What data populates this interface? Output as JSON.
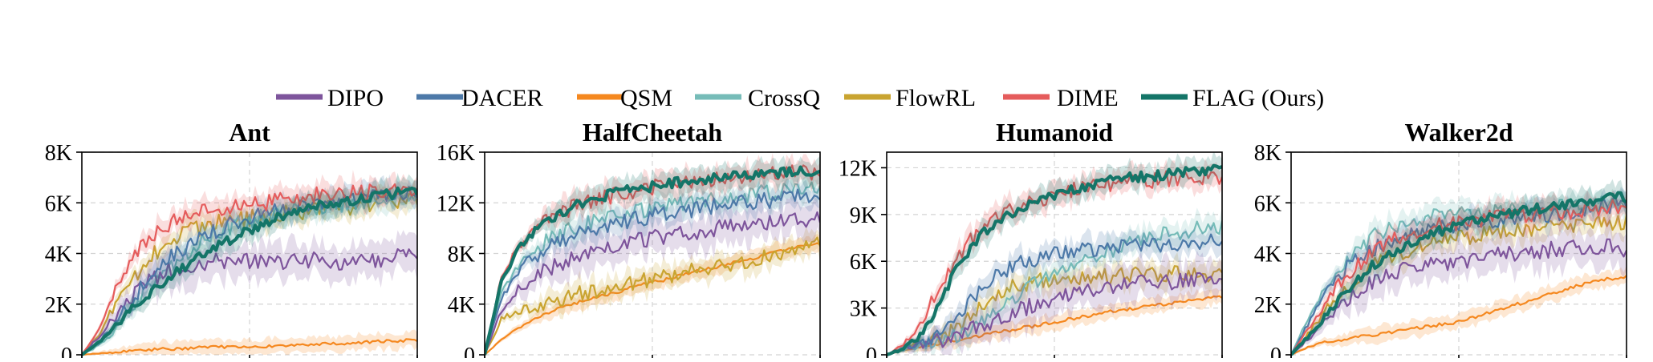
{
  "legend": [
    {
      "name": "DIPO",
      "color": "#7e559c"
    },
    {
      "name": "DACER",
      "color": "#4d79a8"
    },
    {
      "name": "QSM",
      "color": "#f5881f"
    },
    {
      "name": "CrossQ",
      "color": "#76bcb8"
    },
    {
      "name": "FlowRL",
      "color": "#c9a430"
    },
    {
      "name": "DIME",
      "color": "#e55c5c"
    },
    {
      "name": "FLAG (Ours)",
      "color": "#147568"
    }
  ],
  "chart_data": [
    {
      "type": "line",
      "title": "Ant",
      "ylim": [
        0,
        8000
      ],
      "yticks": [
        0,
        2000,
        4000,
        6000,
        8000
      ],
      "yticklabels": [
        "0",
        "2K",
        "4K",
        "6K",
        "8K"
      ],
      "grid": true,
      "x": [
        0,
        0.05,
        0.1,
        0.15,
        0.2,
        0.25,
        0.3,
        0.35,
        0.4,
        0.45,
        0.5,
        0.55,
        0.6,
        0.65,
        0.7,
        0.75,
        0.8,
        0.85,
        0.9,
        0.95,
        1.0
      ],
      "series": [
        {
          "name": "DIPO",
          "values": [
            0,
            700,
            1500,
            2300,
            2900,
            3300,
            3500,
            3600,
            3700,
            3650,
            3700,
            3750,
            3600,
            3700,
            3800,
            3700,
            3600,
            3800,
            3700,
            3900,
            3800
          ]
        },
        {
          "name": "DACER",
          "values": [
            0,
            500,
            1200,
            2200,
            3000,
            3700,
            4200,
            4600,
            4900,
            5200,
            5400,
            5600,
            5700,
            5800,
            5900,
            6000,
            6100,
            6200,
            6300,
            6400,
            6500
          ]
        },
        {
          "name": "QSM",
          "values": [
            0,
            50,
            100,
            150,
            200,
            220,
            250,
            280,
            300,
            320,
            330,
            350,
            380,
            400,
            420,
            440,
            470,
            500,
            520,
            560,
            600
          ]
        },
        {
          "name": "CrossQ",
          "values": [
            0,
            400,
            1000,
            1800,
            2600,
            3300,
            3900,
            4400,
            4800,
            5100,
            5300,
            5500,
            5600,
            5700,
            5800,
            5900,
            6000,
            6100,
            6200,
            6300,
            6300
          ]
        },
        {
          "name": "FlowRL",
          "values": [
            0,
            800,
            2000,
            3000,
            3800,
            4400,
            4800,
            5000,
            5200,
            5300,
            5400,
            5500,
            5600,
            5600,
            5700,
            5800,
            5800,
            5900,
            6000,
            6000,
            6100
          ]
        },
        {
          "name": "DIME",
          "values": [
            0,
            1000,
            2600,
            3800,
            4600,
            5100,
            5400,
            5600,
            5800,
            5900,
            6000,
            6000,
            6100,
            6200,
            6300,
            6300,
            6400,
            6400,
            6500,
            6500,
            6600
          ]
        },
        {
          "name": "FLAG (Ours)",
          "values": [
            0,
            500,
            1100,
            1800,
            2400,
            2900,
            3400,
            3900,
            4300,
            4600,
            4900,
            5200,
            5500,
            5700,
            5900,
            6000,
            6100,
            6200,
            6300,
            6400,
            6500
          ]
        }
      ]
    },
    {
      "type": "line",
      "title": "HalfCheetah",
      "ylim": [
        0,
        16000
      ],
      "yticks": [
        0,
        4000,
        8000,
        12000,
        16000
      ],
      "yticklabels": [
        "0",
        "4K",
        "8K",
        "12K",
        "16K"
      ],
      "grid": true,
      "x": [
        0,
        0.05,
        0.1,
        0.15,
        0.2,
        0.25,
        0.3,
        0.35,
        0.4,
        0.45,
        0.5,
        0.55,
        0.6,
        0.65,
        0.7,
        0.75,
        0.8,
        0.85,
        0.9,
        0.95,
        1.0
      ],
      "series": [
        {
          "name": "DIPO",
          "values": [
            0,
            3500,
            5200,
            6200,
            6900,
            7500,
            8000,
            8400,
            8700,
            9000,
            9200,
            9400,
            9600,
            9800,
            10000,
            10100,
            10200,
            10400,
            10500,
            10700,
            10800
          ]
        },
        {
          "name": "DACER",
          "values": [
            0,
            4500,
            6600,
            7800,
            8600,
            9200,
            9700,
            10100,
            10400,
            10700,
            11000,
            11200,
            11400,
            11600,
            11800,
            11900,
            12100,
            12200,
            12300,
            12500,
            12600
          ]
        },
        {
          "name": "QSM",
          "values": [
            0,
            1200,
            2100,
            2800,
            3400,
            3900,
            4300,
            4700,
            5000,
            5400,
            5700,
            6000,
            6400,
            6700,
            7000,
            7300,
            7600,
            8000,
            8300,
            8600,
            8800
          ]
        },
        {
          "name": "CrossQ",
          "values": [
            0,
            5000,
            7100,
            8400,
            9200,
            9800,
            10300,
            10700,
            11000,
            11300,
            11600,
            11800,
            12000,
            12200,
            12400,
            12500,
            12700,
            12800,
            12900,
            13000,
            13100
          ]
        },
        {
          "name": "FlowRL",
          "values": [
            0,
            2800,
            3500,
            3900,
            4300,
            4600,
            4900,
            5200,
            5500,
            5800,
            6000,
            6300,
            6600,
            6800,
            7000,
            7300,
            7500,
            7800,
            8100,
            8400,
            8700
          ]
        },
        {
          "name": "DIME",
          "values": [
            0,
            6200,
            8500,
            9900,
            10800,
            11500,
            12000,
            12400,
            12700,
            13000,
            13200,
            13400,
            13600,
            13800,
            13900,
            14000,
            14100,
            14200,
            14300,
            14400,
            14500
          ]
        },
        {
          "name": "FLAG (Ours)",
          "values": [
            0,
            5800,
            8300,
            9800,
            10800,
            11500,
            12100,
            12500,
            12800,
            13100,
            13300,
            13500,
            13700,
            13900,
            14000,
            14100,
            14200,
            14300,
            14400,
            14500,
            14600
          ]
        }
      ]
    },
    {
      "type": "line",
      "title": "Humanoid",
      "ylim": [
        0,
        13000
      ],
      "yticks": [
        0,
        3000,
        6000,
        9000,
        12000
      ],
      "yticklabels": [
        "0",
        "3K",
        "6K",
        "9K",
        "12K"
      ],
      "grid": true,
      "x": [
        0,
        0.05,
        0.1,
        0.15,
        0.2,
        0.25,
        0.3,
        0.35,
        0.4,
        0.45,
        0.5,
        0.55,
        0.6,
        0.65,
        0.7,
        0.75,
        0.8,
        0.85,
        0.9,
        0.95,
        1.0
      ],
      "series": [
        {
          "name": "DIPO",
          "values": [
            0,
            400,
            600,
            900,
            1200,
            1600,
            2000,
            2400,
            2900,
            3300,
            3700,
            4000,
            4200,
            4400,
            4500,
            4600,
            4700,
            4700,
            4800,
            4800,
            4800
          ]
        },
        {
          "name": "DACER",
          "values": [
            0,
            400,
            700,
            1200,
            2000,
            3400,
            4600,
            5400,
            5900,
            6200,
            6400,
            6600,
            6700,
            6800,
            6900,
            7000,
            7000,
            7100,
            7100,
            7200,
            7300
          ]
        },
        {
          "name": "QSM",
          "values": [
            0,
            300,
            500,
            700,
            900,
            1100,
            1300,
            1500,
            1700,
            1900,
            2100,
            2300,
            2500,
            2700,
            2900,
            3000,
            3200,
            3300,
            3500,
            3600,
            3700
          ]
        },
        {
          "name": "CrossQ",
          "values": [
            0,
            400,
            600,
            900,
            1200,
            1700,
            2400,
            3200,
            4000,
            4700,
            5300,
            5800,
            6200,
            6600,
            7000,
            7300,
            7600,
            7800,
            8000,
            8100,
            8200
          ]
        },
        {
          "name": "FlowRL",
          "values": [
            0,
            400,
            700,
            1000,
            1600,
            2600,
            3500,
            4100,
            4500,
            4700,
            4800,
            4900,
            5000,
            5000,
            5100,
            5100,
            5100,
            5200,
            5200,
            5200,
            5200
          ]
        },
        {
          "name": "DIME",
          "values": [
            0,
            600,
            2000,
            4000,
            6000,
            7400,
            8300,
            9000,
            9500,
            9900,
            10200,
            10500,
            10700,
            10900,
            11000,
            11100,
            11200,
            11300,
            11300,
            11400,
            11400
          ]
        },
        {
          "name": "FLAG (Ours)",
          "values": [
            0,
            400,
            1200,
            3000,
            5200,
            6900,
            8000,
            8800,
            9400,
            9900,
            10300,
            10600,
            10900,
            11100,
            11300,
            11400,
            11500,
            11600,
            11700,
            11800,
            11900
          ]
        }
      ]
    },
    {
      "type": "line",
      "title": "Walker2d",
      "ylim": [
        0,
        8000
      ],
      "yticks": [
        0,
        2000,
        4000,
        6000,
        8000
      ],
      "yticklabels": [
        "0",
        "2K",
        "4K",
        "6K",
        "8K"
      ],
      "grid": true,
      "x": [
        0,
        0.05,
        0.1,
        0.15,
        0.2,
        0.25,
        0.3,
        0.35,
        0.4,
        0.45,
        0.5,
        0.55,
        0.6,
        0.65,
        0.7,
        0.75,
        0.8,
        0.85,
        0.9,
        0.95,
        1.0
      ],
      "series": [
        {
          "name": "DIPO",
          "values": [
            0,
            600,
            1300,
            2000,
            2500,
            2900,
            3200,
            3400,
            3500,
            3600,
            3700,
            3800,
            3900,
            4000,
            4000,
            4100,
            4200,
            4200,
            4300,
            4300,
            4100
          ]
        },
        {
          "name": "DACER",
          "values": [
            0,
            1200,
            2400,
            3200,
            3800,
            4200,
            4500,
            4700,
            4900,
            5000,
            5100,
            5200,
            5300,
            5400,
            5500,
            5500,
            5600,
            5700,
            5800,
            5900,
            6000
          ]
        },
        {
          "name": "QSM",
          "values": [
            0,
            300,
            500,
            600,
            700,
            800,
            900,
            1000,
            1100,
            1200,
            1300,
            1500,
            1700,
            1900,
            2100,
            2300,
            2500,
            2700,
            2900,
            3000,
            3100
          ]
        },
        {
          "name": "CrossQ",
          "values": [
            0,
            1400,
            2600,
            3500,
            4200,
            4700,
            5000,
            5200,
            5400,
            5500,
            5500,
            5600,
            5600,
            5700,
            5700,
            5800,
            5800,
            5900,
            5900,
            6000,
            6000
          ]
        },
        {
          "name": "FlowRL",
          "values": [
            0,
            800,
            1700,
            2500,
            3100,
            3600,
            3900,
            4100,
            4300,
            4500,
            4600,
            4700,
            4800,
            4900,
            5000,
            5000,
            5100,
            5100,
            5200,
            5200,
            5300
          ]
        },
        {
          "name": "DIME",
          "values": [
            0,
            1000,
            2000,
            2900,
            3600,
            4100,
            4500,
            4800,
            5000,
            5100,
            5200,
            5300,
            5400,
            5500,
            5500,
            5600,
            5600,
            5700,
            5700,
            5800,
            5800
          ]
        },
        {
          "name": "FLAG (Ours)",
          "values": [
            0,
            700,
            1500,
            2300,
            3000,
            3600,
            4000,
            4400,
            4700,
            4900,
            5100,
            5300,
            5500,
            5600,
            5700,
            5800,
            5900,
            6000,
            6100,
            6200,
            6200
          ]
        }
      ]
    }
  ]
}
